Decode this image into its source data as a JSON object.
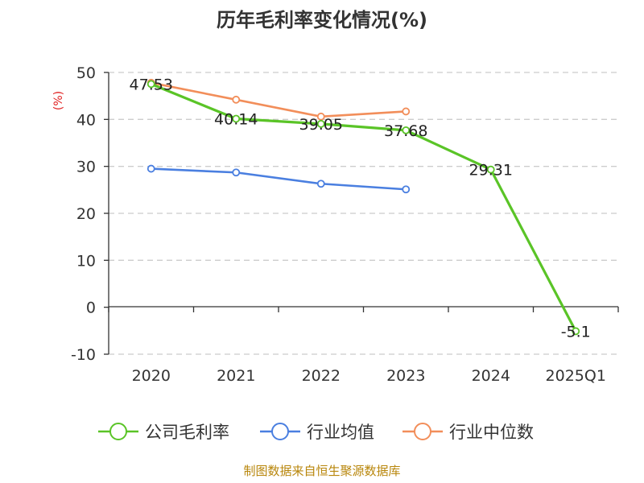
{
  "chart_data": {
    "type": "line",
    "title": "历年毛利率变化情况(%)",
    "ylabel": "(%)",
    "xlabel": "",
    "categories": [
      "2020",
      "2021",
      "2022",
      "2023",
      "2024",
      "2025Q1"
    ],
    "ylim": [
      -10,
      50
    ],
    "yticks": [
      -10,
      0,
      10,
      20,
      30,
      40,
      50
    ],
    "grid": true,
    "legend_position": "bottom",
    "series": [
      {
        "name": "公司毛利率",
        "color": "#5ac427",
        "values": [
          47.53,
          40.14,
          39.05,
          37.68,
          29.31,
          -5.1
        ],
        "labels": [
          "47.53",
          "40.14",
          "39.05",
          "37.68",
          "29.31",
          "-5.1"
        ]
      },
      {
        "name": "行业均值",
        "color": "#4a7fe0",
        "values": [
          29.5,
          28.7,
          26.3,
          25.1,
          null,
          null
        ]
      },
      {
        "name": "行业中位数",
        "color": "#f28e5a",
        "values": [
          47.8,
          44.2,
          40.6,
          41.7,
          null,
          null
        ]
      }
    ],
    "source": "制图数据来自恒生聚源数据库"
  }
}
